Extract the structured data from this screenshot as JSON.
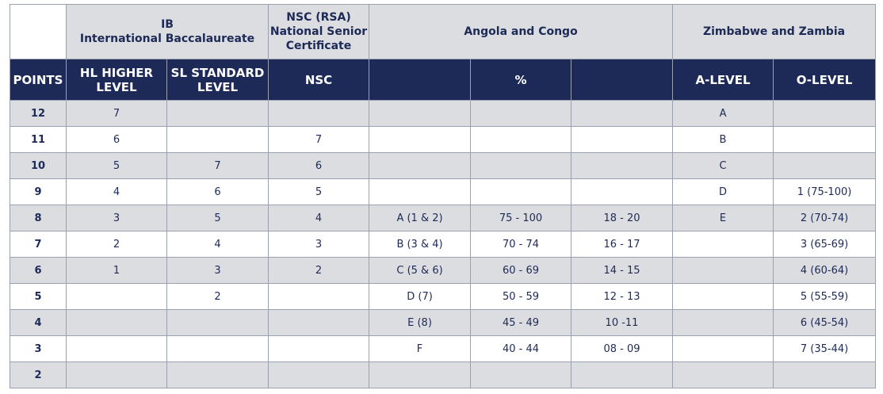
{
  "groups": {
    "ib": [
      "IB",
      "International Baccalaureate"
    ],
    "nsc": [
      "NSC (RSA)",
      "National Senior",
      "Certificate"
    ],
    "angola": "Angola and Congo",
    "zimbabwe": "Zimbabwe and Zambia"
  },
  "headers": {
    "points": "POINTS",
    "hl": [
      "HL HIGHER",
      "LEVEL"
    ],
    "sl": [
      "SL STANDARD",
      "LEVEL"
    ],
    "nsc": "NSC",
    "angola_grade": "",
    "angola_percent": "%",
    "angola_range": "",
    "a_level": "A-LEVEL",
    "o_level": "O-LEVEL"
  },
  "rows": [
    {
      "points": "12",
      "hl": "7",
      "sl": "",
      "nsc": "",
      "ag_grade": "",
      "ag_percent": "",
      "ag_range": "",
      "a_level": "A",
      "o_level": ""
    },
    {
      "points": "11",
      "hl": "6",
      "sl": "",
      "nsc": "7",
      "ag_grade": "",
      "ag_percent": "",
      "ag_range": "",
      "a_level": "B",
      "o_level": ""
    },
    {
      "points": "10",
      "hl": "5",
      "sl": "7",
      "nsc": "6",
      "ag_grade": "",
      "ag_percent": "",
      "ag_range": "",
      "a_level": "C",
      "o_level": ""
    },
    {
      "points": "9",
      "hl": "4",
      "sl": "6",
      "nsc": "5",
      "ag_grade": "",
      "ag_percent": "",
      "ag_range": "",
      "a_level": "D",
      "o_level": "1  (75-100)"
    },
    {
      "points": "8",
      "hl": "3",
      "sl": "5",
      "nsc": "4",
      "ag_grade": "A (1 & 2)",
      "ag_percent": "75 - 100",
      "ag_range": "18 - 20",
      "a_level": "E",
      "o_level": "2  (70-74)"
    },
    {
      "points": "7",
      "hl": "2",
      "sl": "4",
      "nsc": "3",
      "ag_grade": "B (3 & 4)",
      "ag_percent": "70 - 74",
      "ag_range": "16 - 17",
      "a_level": "",
      "o_level": "3  (65-69)"
    },
    {
      "points": "6",
      "hl": "1",
      "sl": "3",
      "nsc": "2",
      "ag_grade": "C (5 & 6)",
      "ag_percent": "60 - 69",
      "ag_range": "14 - 15",
      "a_level": "",
      "o_level": "4  (60-64)"
    },
    {
      "points": "5",
      "hl": "",
      "sl": "2",
      "nsc": "",
      "ag_grade": "D (7)",
      "ag_percent": "50 - 59",
      "ag_range": "12 - 13",
      "a_level": "",
      "o_level": "5  (55-59)"
    },
    {
      "points": "4",
      "hl": "",
      "sl": "",
      "nsc": "",
      "ag_grade": "E (8)",
      "ag_percent": "45 - 49",
      "ag_range": "10 -11",
      "a_level": "",
      "o_level": "6  (45-54)"
    },
    {
      "points": "3",
      "hl": "",
      "sl": "",
      "nsc": "",
      "ag_grade": "F",
      "ag_percent": "40 - 44",
      "ag_range": "08 - 09",
      "a_level": "",
      "o_level": "7  (35-44)"
    },
    {
      "points": "2",
      "hl": "",
      "sl": "",
      "nsc": "",
      "ag_grade": "",
      "ag_percent": "",
      "ag_range": "",
      "a_level": "",
      "o_level": ""
    }
  ],
  "colors": {
    "header_bg": "#1d2a57",
    "shaded_bg": "#dcdde0",
    "text": "#1d2a57"
  }
}
